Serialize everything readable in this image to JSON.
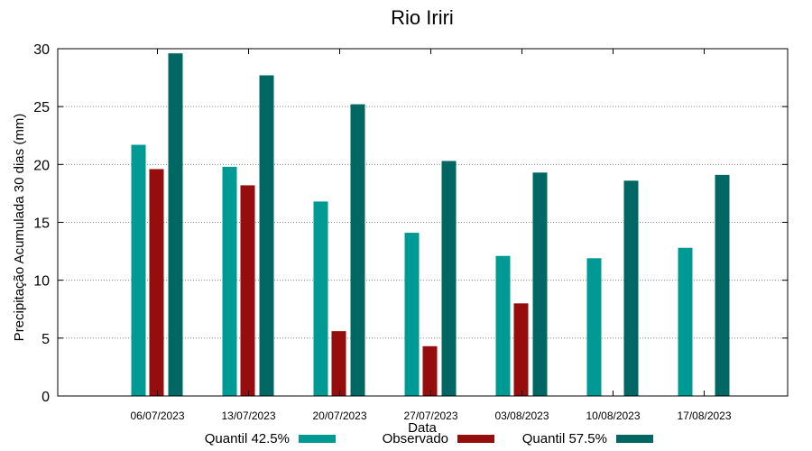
{
  "chart_data": {
    "type": "bar",
    "title": "Rio Iriri",
    "xlabel": "Data",
    "ylabel": "Precipitação Acumulada 30 dias (mm)",
    "ylim": [
      0,
      30
    ],
    "yticks": [
      0,
      5,
      10,
      15,
      20,
      25,
      30
    ],
    "grid": true,
    "legend_position": "bottom",
    "categories": [
      "06/07/2023",
      "13/07/2023",
      "20/07/2023",
      "27/07/2023",
      "03/08/2023",
      "10/08/2023",
      "17/08/2023"
    ],
    "series": [
      {
        "name": "Quantil 42.5%",
        "color": "#009a95",
        "values": [
          21.7,
          19.8,
          16.8,
          14.1,
          12.1,
          11.9,
          12.8
        ]
      },
      {
        "name": "Observado",
        "color": "#950e0d",
        "values": [
          19.6,
          18.2,
          5.6,
          4.3,
          8.0,
          null,
          null
        ]
      },
      {
        "name": "Quantil 57.5%",
        "color": "#006763",
        "values": [
          29.6,
          27.7,
          25.2,
          20.3,
          19.3,
          18.6,
          19.1
        ]
      }
    ]
  }
}
